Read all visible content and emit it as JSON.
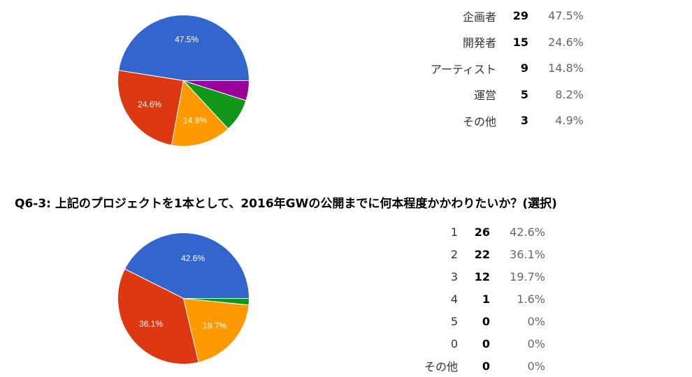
{
  "question2": {
    "title": "Q6-3: 上記のプロジェクトを1本として、2016年GWの公開までに何本程度かかわりたいか？(選択)"
  },
  "chart_data": [
    {
      "type": "pie",
      "title": "",
      "slices": [
        {
          "label": "企画者",
          "count": 29,
          "percent": "47.5%",
          "value": 47.5,
          "color": "#3366cc",
          "slice_label": "47.5%"
        },
        {
          "label": "開発者",
          "count": 15,
          "percent": "24.6%",
          "value": 24.6,
          "color": "#dc3912",
          "slice_label": "24.6%"
        },
        {
          "label": "アーティスト",
          "count": 9,
          "percent": "14.8%",
          "value": 14.8,
          "color": "#ff9900",
          "slice_label": "14.8%"
        },
        {
          "label": "運営",
          "count": 5,
          "percent": "8.2%",
          "value": 8.2,
          "color": "#109618",
          "slice_label": ""
        },
        {
          "label": "その他",
          "count": 3,
          "percent": "4.9%",
          "value": 4.9,
          "color": "#990099",
          "slice_label": ""
        }
      ]
    },
    {
      "type": "pie",
      "title": "",
      "slices": [
        {
          "label": "1",
          "count": 26,
          "percent": "42.6%",
          "value": 42.6,
          "color": "#3366cc",
          "slice_label": "42.6%"
        },
        {
          "label": "2",
          "count": 22,
          "percent": "36.1%",
          "value": 36.1,
          "color": "#dc3912",
          "slice_label": "36.1%"
        },
        {
          "label": "3",
          "count": 12,
          "percent": "19.7%",
          "value": 19.7,
          "color": "#ff9900",
          "slice_label": "19.7%"
        },
        {
          "label": "4",
          "count": 1,
          "percent": "1.6%",
          "value": 1.6,
          "color": "#109618",
          "slice_label": ""
        },
        {
          "label": "5",
          "count": 0,
          "percent": "0%",
          "value": 0,
          "color": "#990099",
          "slice_label": ""
        },
        {
          "label": "0",
          "count": 0,
          "percent": "0%",
          "value": 0,
          "color": "#0099c6",
          "slice_label": ""
        },
        {
          "label": "その他",
          "count": 0,
          "percent": "0%",
          "value": 0,
          "color": "#dd4477",
          "slice_label": ""
        }
      ]
    }
  ]
}
